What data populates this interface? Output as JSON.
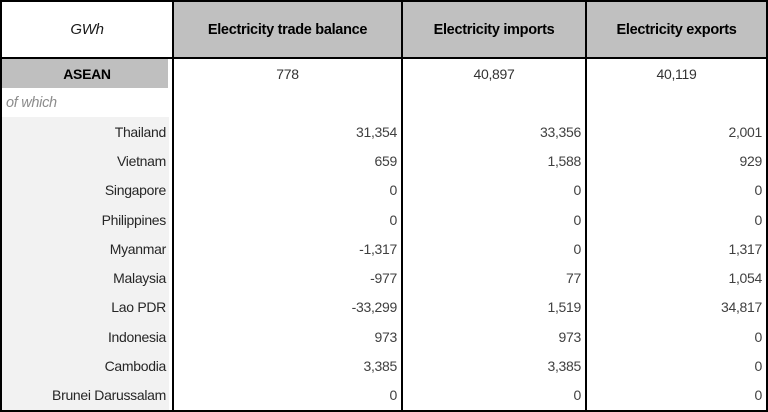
{
  "table": {
    "unit_label": "GWh",
    "columns": [
      "Electricity trade balance",
      "Electricity imports",
      "Electricity exports"
    ],
    "summary_row": {
      "label": "ASEAN",
      "values": [
        "778",
        "40,897",
        "40,119"
      ]
    },
    "of_which_label": "of which",
    "rows": [
      {
        "country": "Thailand",
        "balance": "31,354",
        "imports": "33,356",
        "exports": "2,001"
      },
      {
        "country": "Vietnam",
        "balance": "659",
        "imports": "1,588",
        "exports": "929"
      },
      {
        "country": "Singapore",
        "balance": "0",
        "imports": "0",
        "exports": "0"
      },
      {
        "country": "Philippines",
        "balance": "0",
        "imports": "0",
        "exports": "0"
      },
      {
        "country": "Myanmar",
        "balance": "-1,317",
        "imports": "0",
        "exports": "1,317"
      },
      {
        "country": "Malaysia",
        "balance": "-977",
        "imports": "77",
        "exports": "1,054"
      },
      {
        "country": "Lao PDR",
        "balance": "-33,299",
        "imports": "1,519",
        "exports": "34,817"
      },
      {
        "country": "Indonesia",
        "balance": "973",
        "imports": "973",
        "exports": "0"
      },
      {
        "country": "Cambodia",
        "balance": "3,385",
        "imports": "3,385",
        "exports": "0"
      },
      {
        "country": "Brunei Darussalam",
        "balance": "0",
        "imports": "0",
        "exports": "0"
      }
    ]
  },
  "colors": {
    "header_bg": "#c0c0c0",
    "summary_label_bg": "#bfbfbf",
    "country_label_bg": "#f2f2f2",
    "border": "#000000",
    "muted_text": "#8c8c8c",
    "value_text": "#404040"
  },
  "chart_data": {
    "type": "table",
    "title": "ASEAN electricity trade (GWh)",
    "unit": "GWh",
    "columns": [
      "Electricity trade balance",
      "Electricity imports",
      "Electricity exports"
    ],
    "rows": [
      {
        "label": "ASEAN",
        "values": [
          778,
          40897,
          40119
        ]
      },
      {
        "label": "Thailand",
        "values": [
          31354,
          33356,
          2001
        ]
      },
      {
        "label": "Vietnam",
        "values": [
          659,
          1588,
          929
        ]
      },
      {
        "label": "Singapore",
        "values": [
          0,
          0,
          0
        ]
      },
      {
        "label": "Philippines",
        "values": [
          0,
          0,
          0
        ]
      },
      {
        "label": "Myanmar",
        "values": [
          -1317,
          0,
          1317
        ]
      },
      {
        "label": "Malaysia",
        "values": [
          -977,
          77,
          1054
        ]
      },
      {
        "label": "Lao PDR",
        "values": [
          -33299,
          1519,
          34817
        ]
      },
      {
        "label": "Indonesia",
        "values": [
          973,
          973,
          0
        ]
      },
      {
        "label": "Cambodia",
        "values": [
          3385,
          3385,
          0
        ]
      },
      {
        "label": "Brunei Darussalam",
        "values": [
          0,
          0,
          0
        ]
      }
    ]
  }
}
